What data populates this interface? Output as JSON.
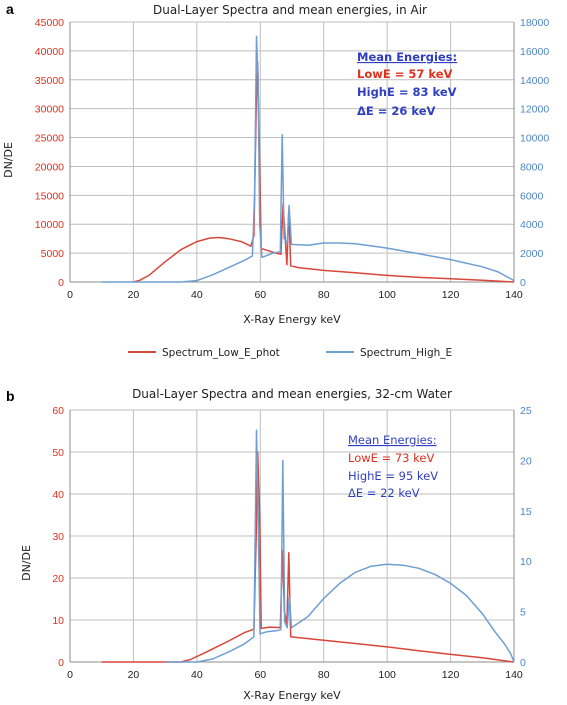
{
  "colors": {
    "low": "#d9463a",
    "high": "#6e9fd2",
    "ann_low": "#e0301e",
    "ann_high": "#2f3fbf",
    "grid": "#bfbfbf",
    "axis": "#8c8c8c"
  },
  "legend": {
    "low_label": "Spectrum_Low_E_phot",
    "high_label": "Spectrum_High_E"
  },
  "chart_data": [
    {
      "panel_label": "a",
      "type": "line",
      "title": "Dual-Layer Spectra and mean energies, in Air",
      "xlabel": "X-Ray Energy keV",
      "ylabel": "DN/DE",
      "xlim": [
        0,
        140
      ],
      "ylim_left": [
        0,
        45000
      ],
      "ylim_right": [
        0,
        18000
      ],
      "x_ticks": [
        "0",
        "20",
        "40",
        "60",
        "80",
        "100",
        "120",
        "140"
      ],
      "y_left_ticks": [
        "0",
        "5000",
        "10000",
        "15000",
        "20000",
        "25000",
        "30000",
        "35000",
        "40000",
        "45000"
      ],
      "y_right_ticks": [
        "0",
        "2000",
        "4000",
        "6000",
        "8000",
        "10000",
        "12000",
        "14000",
        "16000",
        "18000"
      ],
      "grid": true,
      "annotation": {
        "heading": "Mean Energies:",
        "low": "LowE = 57 keV",
        "high": "HighE = 83 keV",
        "delta": "ΔE = 26 keV"
      },
      "series": [
        {
          "name": "Spectrum_Low_E_phot",
          "axis": "left",
          "points": [
            [
              20,
              0
            ],
            [
              22,
              300
            ],
            [
              25,
              1200
            ],
            [
              30,
              3500
            ],
            [
              35,
              5600
            ],
            [
              40,
              7000
            ],
            [
              44,
              7600
            ],
            [
              47,
              7700
            ],
            [
              50,
              7500
            ],
            [
              54,
              7000
            ],
            [
              57,
              6200
            ],
            [
              58,
              8000
            ],
            [
              58.7,
              30000
            ],
            [
              59.2,
              38000
            ],
            [
              59.8,
              20000
            ],
            [
              60.3,
              5800
            ],
            [
              62,
              5500
            ],
            [
              65,
              5000
            ],
            [
              66.5,
              4800
            ],
            [
              67.2,
              13500
            ],
            [
              67.7,
              9000
            ],
            [
              68.4,
              3000
            ],
            [
              69,
              12500
            ],
            [
              69.6,
              2800
            ],
            [
              72,
              2500
            ],
            [
              80,
              2000
            ],
            [
              90,
              1600
            ],
            [
              100,
              1150
            ],
            [
              110,
              800
            ],
            [
              120,
              550
            ],
            [
              130,
              300
            ],
            [
              140,
              0
            ]
          ]
        },
        {
          "name": "Spectrum_High_E",
          "axis": "right",
          "points": [
            [
              10,
              0
            ],
            [
              35,
              0
            ],
            [
              40,
              100
            ],
            [
              45,
              500
            ],
            [
              50,
              1000
            ],
            [
              55,
              1500
            ],
            [
              57.5,
              1800
            ],
            [
              58.2,
              6000
            ],
            [
              58.8,
              17000
            ],
            [
              59.3,
              14000
            ],
            [
              59.8,
              4000
            ],
            [
              60.5,
              1700
            ],
            [
              64,
              2000
            ],
            [
              66.3,
              2100
            ],
            [
              66.9,
              10200
            ],
            [
              67.5,
              3000
            ],
            [
              68.5,
              2700
            ],
            [
              69.1,
              5300
            ],
            [
              69.8,
              2600
            ],
            [
              75,
              2550
            ],
            [
              80,
              2700
            ],
            [
              85,
              2700
            ],
            [
              90,
              2650
            ],
            [
              100,
              2350
            ],
            [
              110,
              1950
            ],
            [
              120,
              1550
            ],
            [
              130,
              1050
            ],
            [
              135,
              700
            ],
            [
              140,
              100
            ]
          ]
        }
      ]
    },
    {
      "panel_label": "b",
      "type": "line",
      "title": "Dual-Layer Spectra and mean energies, 32-cm Water",
      "xlabel": "X-Ray Energy keV",
      "ylabel": "DN/DE",
      "xlim": [
        0,
        140
      ],
      "ylim_left": [
        0,
        60
      ],
      "ylim_right": [
        0,
        25
      ],
      "x_ticks": [
        "0",
        "20",
        "40",
        "60",
        "80",
        "100",
        "120",
        "140"
      ],
      "y_left_ticks": [
        "0",
        "10",
        "20",
        "30",
        "40",
        "50",
        "60"
      ],
      "y_right_ticks": [
        "0",
        "5",
        "10",
        "15",
        "20",
        "25"
      ],
      "grid": true,
      "annotation": {
        "heading": "Mean Energies:",
        "low": "LowE = 73 keV",
        "high": "HighE = 95 keV",
        "delta": "ΔE = 22 keV"
      },
      "series": [
        {
          "name": "Spectrum_Low_E_phot",
          "axis": "left",
          "points": [
            [
              10,
              0
            ],
            [
              35,
              0
            ],
            [
              38,
              0.6
            ],
            [
              42,
              2
            ],
            [
              46,
              3.5
            ],
            [
              50,
              5
            ],
            [
              55,
              7
            ],
            [
              58,
              7.8
            ],
            [
              58.7,
              30
            ],
            [
              59.2,
              50
            ],
            [
              59.8,
              35
            ],
            [
              60.3,
              8
            ],
            [
              63,
              8.3
            ],
            [
              66.3,
              8.2
            ],
            [
              67,
              26.5
            ],
            [
              67.6,
              12
            ],
            [
              68.4,
              9
            ],
            [
              69,
              26
            ],
            [
              69.6,
              6
            ],
            [
              72,
              5.8
            ],
            [
              80,
              5.2
            ],
            [
              90,
              4.4
            ],
            [
              100,
              3.6
            ],
            [
              110,
              2.7
            ],
            [
              120,
              1.8
            ],
            [
              130,
              1
            ],
            [
              140,
              0
            ]
          ]
        },
        {
          "name": "Spectrum_High_E",
          "axis": "right",
          "points": [
            [
              30,
              0
            ],
            [
              40,
              0
            ],
            [
              45,
              0.3
            ],
            [
              50,
              1
            ],
            [
              55,
              1.8
            ],
            [
              58,
              2.5
            ],
            [
              58.8,
              23
            ],
            [
              59.3,
              15
            ],
            [
              59.9,
              2.8
            ],
            [
              62,
              3
            ],
            [
              65,
              3.1
            ],
            [
              66.5,
              3.2
            ],
            [
              67.1,
              20
            ],
            [
              67.7,
              4
            ],
            [
              68.5,
              3.4
            ],
            [
              69.2,
              6.5
            ],
            [
              69.8,
              3.4
            ],
            [
              75,
              4.5
            ],
            [
              80,
              6.3
            ],
            [
              85,
              7.8
            ],
            [
              90,
              8.9
            ],
            [
              95,
              9.5
            ],
            [
              100,
              9.7
            ],
            [
              105,
              9.6
            ],
            [
              110,
              9.3
            ],
            [
              115,
              8.7
            ],
            [
              120,
              7.8
            ],
            [
              125,
              6.6
            ],
            [
              130,
              4.8
            ],
            [
              134,
              3
            ],
            [
              137,
              1.8
            ],
            [
              139,
              0.8
            ],
            [
              140,
              0
            ]
          ]
        }
      ]
    }
  ]
}
